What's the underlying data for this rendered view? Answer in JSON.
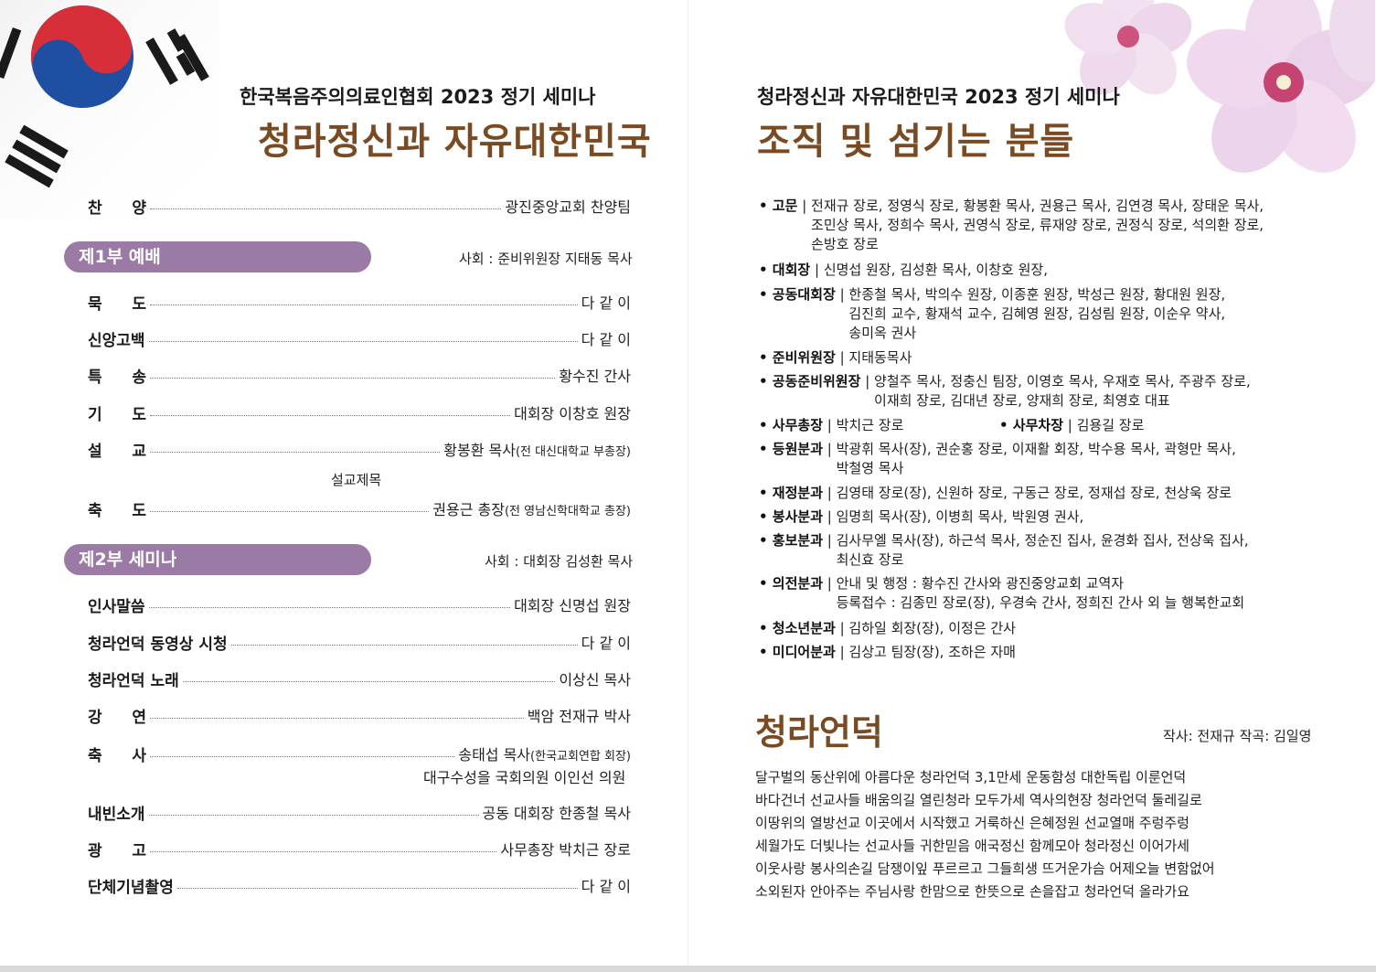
{
  "left": {
    "subtitle": "한국복음주의의료인협회 2023 정기 세미나",
    "title": "청라정신과 자유대한민국",
    "opening": {
      "label": "찬 양",
      "value": "광진중앙교회 찬양팀"
    },
    "part1": {
      "heading": "제1부 예배",
      "host": "사회 : 준비위원장 지태동 목사",
      "items": [
        {
          "label": "묵 도",
          "value": "다 같 이"
        },
        {
          "label": "신앙고백",
          "value": "다 같 이"
        },
        {
          "label": "특 송",
          "value": "황수진 간사"
        },
        {
          "label": "기 도",
          "value": "대회장 이창호 원장"
        },
        {
          "label": "설 교",
          "value": "황봉환 목사",
          "note": "(전 대신대학교 부총장)"
        },
        {
          "label": "축 도",
          "value": "권용근 총장",
          "note": "(전 영남신학대학교 총장)"
        }
      ],
      "sermon_title_label": "설교제목"
    },
    "part2": {
      "heading": "제2부 세미나",
      "host": "사회 : 대회장 김성환 목사",
      "items": [
        {
          "label": "인사말씀",
          "value": "대회장 신명섭 원장"
        },
        {
          "label": "청라언덕 동영상 시청",
          "value": "다 같 이"
        },
        {
          "label": "청라언덕 노래",
          "value": "이상신 목사"
        },
        {
          "label": "강 연",
          "value": "백암 전재규 박사"
        },
        {
          "label": "축 사",
          "value": "송태섭 목사",
          "note": "(한국교회연합 회장)",
          "extra": "대구수성을 국회의원 이인선 의원"
        },
        {
          "label": "내빈소개",
          "value": "공동 대회장 한종철 목사"
        },
        {
          "label": "광 고",
          "value": "사무총장 박치근 장로"
        },
        {
          "label": "단체기념촬영",
          "value": "다 같 이"
        }
      ]
    }
  },
  "right": {
    "subtitle": "청라정신과 자유대한민국 2023 정기 세미나",
    "title": "조직 및 섬기는 분들",
    "staff": [
      {
        "label": "• 고문",
        "lines": [
          "전재규 장로, 정영식 장로, 황봉환 목사, 권용근 목사, 김연경 목사, 장태운 목사,",
          "조민상 목사, 정희수 목사, 권영식 장로, 류재양 장로, 권정식 장로, 석의환 장로,",
          "손방호 장로"
        ]
      },
      {
        "label": "• 대회장",
        "lines": [
          "신명섭 원장, 김성환 목사, 이창호 원장,"
        ]
      },
      {
        "label": "• 공동대회장",
        "lines": [
          "한종철 목사, 박의수 원장, 이종훈 원장, 박성근 원장, 황대원 원장,",
          "김진희 교수, 황재석 교수, 김혜영 원장, 김성림 원장, 이순우 약사,",
          "송미옥 권사"
        ]
      },
      {
        "label": "• 준비위원장",
        "lines": [
          "지태동목사"
        ]
      },
      {
        "label": "• 공동준비위원장",
        "lines": [
          "양철주 목사, 정충신 팀장, 이영호 목사, 우재호 목사, 주광주 장로,",
          "이재희 장로, 김대년 장로, 양재희 장로, 최영호 대표"
        ]
      },
      {
        "label": "• 사무총장",
        "lines": [
          "박치근 장로"
        ],
        "label2": "• 사무차장",
        "value2": "김용길 장로"
      },
      {
        "label": "• 등원분과",
        "lines": [
          "박광휘 목사(장), 권순홍 장로, 이재활 회장, 박수용 목사, 곽형만 목사,",
          "박철영 목사"
        ]
      },
      {
        "label": "• 재정분과",
        "lines": [
          "김영태 장로(장), 신원하 장로, 구동근 장로, 정재섭 장로, 천상욱 장로"
        ]
      },
      {
        "label": "• 봉사분과",
        "lines": [
          "임명희 목사(장), 이병희 목사, 박원영 권사,"
        ]
      },
      {
        "label": "• 홍보분과",
        "lines": [
          "김사무엘 목사(장), 하근석 목사, 정순진 집사, 윤경화 집사, 전상욱 집사,",
          "최신효 장로"
        ]
      },
      {
        "label": "• 의전분과",
        "lines": [
          "안내 및 행정 : 황수진 간사와 광진중앙교회 교역자",
          "등록접수 : 김종민 장로(장), 우경숙 간사, 정희진 간사 외 늘 행복한교회"
        ]
      },
      {
        "label": "• 청소년분과",
        "lines": [
          "김하일 회장(장), 이정은 간사"
        ]
      },
      {
        "label": "• 미디어분과",
        "lines": [
          "김상고 팀장(장), 조하은 자매"
        ]
      }
    ],
    "song": {
      "title": "청라언덕",
      "credit": "작사: 전재규   작곡: 김일영",
      "lyrics": [
        "달구벌의 동산위에 아름다운 청라언덕 3,1만세 운동함성  대한독립 이룬언덕",
        "바다건너 선교사들 배움의길 열린청라 모두가세 역사의현장 청라언덕 둘레길로",
        "이땅위의 열방선교 이곳에서 시작했고 거룩하신 은혜정원 선교열매 주렁주렁",
        "세월가도 더빛나는 선교사들 귀한믿음 애국정신 함께모아 청라정신 이어가세",
        "이웃사랑 봉사의손길 담쟁이잎 푸르르고 그들희생 뜨거운가슴 어제오늘 변함없어",
        "소외된자 안아주는 주님사랑 한맘으로 한뜻으로 손을잡고 청라언덕 올라가요"
      ]
    }
  },
  "colors": {
    "title_brown": "#7a4a22",
    "pill_purple": "#9b7aa6",
    "flag_red": "#d62f3a",
    "flag_blue": "#1f4fa0"
  }
}
